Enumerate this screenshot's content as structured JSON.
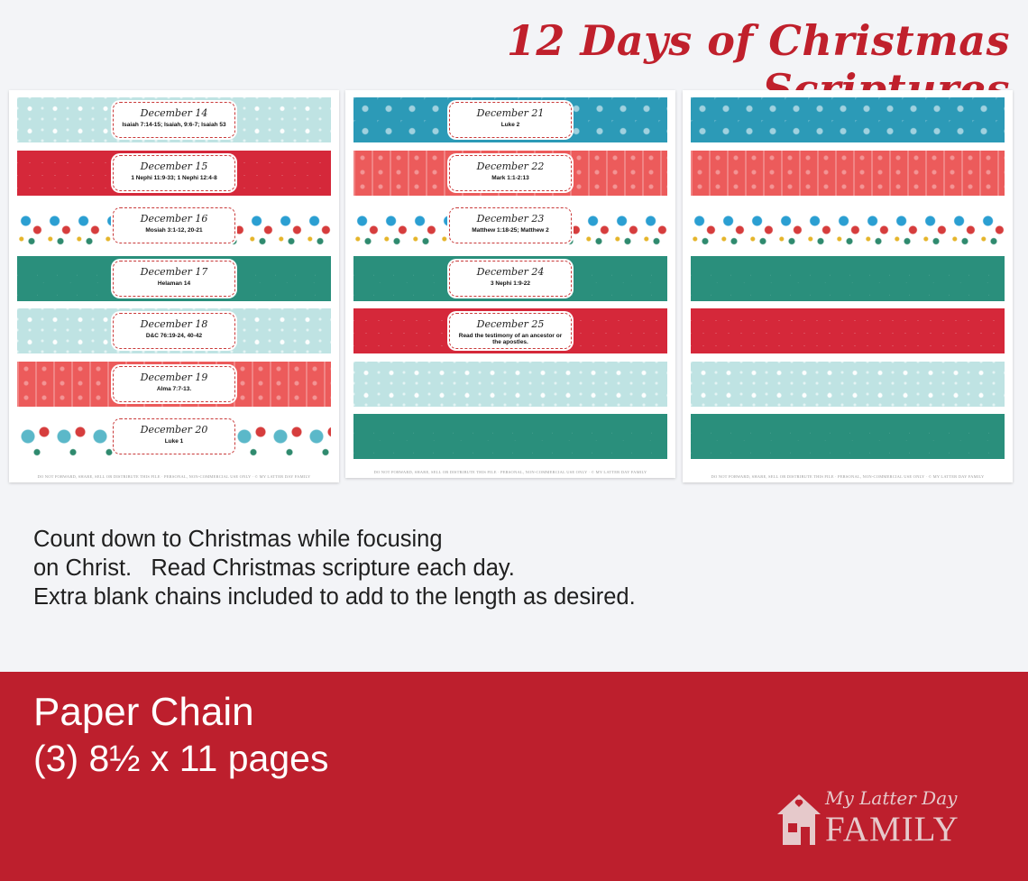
{
  "title": "12 Days of Christmas Scriptures",
  "pages": [
    {
      "strips": [
        {
          "pattern": "snow",
          "card": {
            "day": "December 14",
            "ref": "Isaiah 7:14-15; Isaiah, 9:6-7; Isaiah 53"
          }
        },
        {
          "pattern": "redgrid",
          "card": {
            "day": "December 15",
            "ref": "1 Nephi 11:9-33; 1 Nephi 12:4-8"
          }
        },
        {
          "pattern": "gifts",
          "card": {
            "day": "December 16",
            "ref": "Mosiah 3:1-12, 20-21"
          }
        },
        {
          "pattern": "green",
          "card": {
            "day": "December 17",
            "ref": "Helaman 14"
          }
        },
        {
          "pattern": "snow",
          "card": {
            "day": "December 18",
            "ref": "D&C 76:19-24, 40-42"
          }
        },
        {
          "pattern": "coral",
          "card": {
            "day": "December 19",
            "ref": "Alma 7:7-13."
          }
        },
        {
          "pattern": "ornaments",
          "card": {
            "day": "December 20",
            "ref": "Luke 1"
          }
        }
      ]
    },
    {
      "strips": [
        {
          "pattern": "blue",
          "card": {
            "day": "December 21",
            "ref": "Luke 2"
          }
        },
        {
          "pattern": "coral",
          "card": {
            "day": "December 22",
            "ref": "Mark 1:1-2:13"
          }
        },
        {
          "pattern": "gifts",
          "card": {
            "day": "December 23",
            "ref": "Matthew 1:18-25; Matthew 2"
          }
        },
        {
          "pattern": "green",
          "card": {
            "day": "December 24",
            "ref": "3 Nephi 1:9-22"
          }
        },
        {
          "pattern": "redgrid",
          "card": {
            "day": "December 25",
            "ref": "Read the testimony of an ancestor or the apostles."
          }
        },
        {
          "pattern": "snow",
          "card": null
        },
        {
          "pattern": "green",
          "card": null
        }
      ]
    },
    {
      "strips": [
        {
          "pattern": "blue",
          "card": null
        },
        {
          "pattern": "coral",
          "card": null
        },
        {
          "pattern": "gifts",
          "card": null
        },
        {
          "pattern": "green",
          "card": null
        },
        {
          "pattern": "redgrid",
          "card": null
        },
        {
          "pattern": "snow",
          "card": null
        },
        {
          "pattern": "green",
          "card": null
        }
      ]
    }
  ],
  "page_footer": "DO NOT FORWARD, SHARE, SELL OR DISTRIBUTE THIS FILE · PERSONAL, NON-COMMERCIAL USE ONLY · © MY LATTER DAY FAMILY",
  "description": {
    "line1": "Count down to Christmas while focusing",
    "line2": "on Christ.   Read Christmas scripture each day.",
    "line3": "Extra blank chains included to add to the length as desired."
  },
  "banner": {
    "line1": "Paper Chain",
    "line2": "(3) 8½ x 11 pages",
    "bg_color": "#bd1f2d"
  },
  "logo": {
    "top_text": "My Latter Day",
    "main_text": "FAMILY",
    "icon": "house-heart-icon"
  },
  "colors": {
    "title": "#c0202c",
    "snow": "#bfe3e3",
    "red": "#d5283a",
    "green": "#2a8f7c",
    "coral": "#ec5b5b",
    "blue": "#2c9ab7"
  }
}
